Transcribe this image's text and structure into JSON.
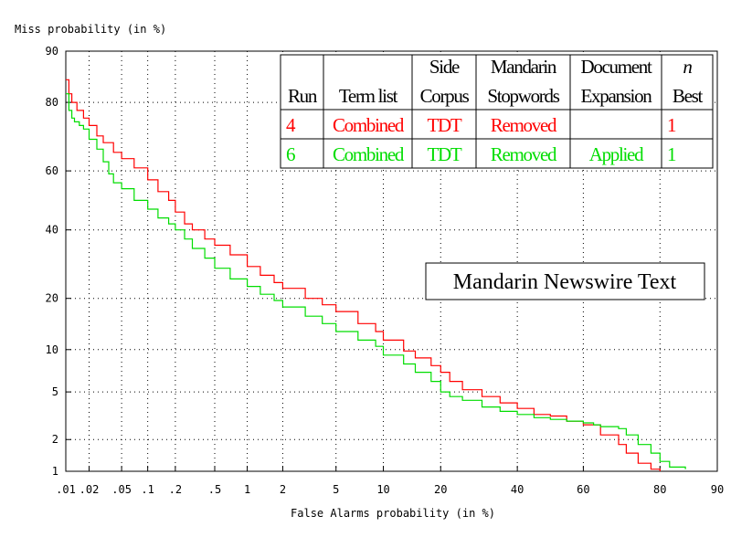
{
  "chart_data": {
    "type": "line",
    "title": "",
    "xlabel": "False Alarms probability (in %)",
    "ylabel": "Miss probability (in %)",
    "scale": "normal deviate (DET)",
    "xlim": [
      0.01,
      90
    ],
    "ylim": [
      1,
      90
    ],
    "x_ticks": [
      ".01",
      ".02",
      ".05",
      ".1",
      ".2",
      ".5",
      "1",
      "2",
      "5",
      "10",
      "20",
      "40",
      "60",
      "80",
      "90"
    ],
    "y_ticks": [
      "1",
      "2",
      "5",
      "10",
      "20",
      "40",
      "60",
      "80",
      "90"
    ],
    "grid": true,
    "series": [
      {
        "name": "Run 4",
        "color": "#ff0000",
        "x": [
          0.01,
          0.011,
          0.012,
          0.014,
          0.017,
          0.02,
          0.025,
          0.03,
          0.04,
          0.05,
          0.07,
          0.1,
          0.13,
          0.17,
          0.2,
          0.25,
          0.3,
          0.4,
          0.5,
          0.7,
          1,
          1.3,
          1.7,
          2,
          3,
          4,
          5,
          7,
          9,
          10,
          13,
          15,
          18,
          20,
          22,
          25,
          30,
          35,
          40,
          45,
          50,
          55,
          60,
          65,
          70,
          72,
          75,
          78,
          80
        ],
        "y": [
          85,
          82,
          80,
          78,
          76,
          74,
          71,
          69,
          66,
          64,
          61,
          57,
          53,
          50,
          46,
          42,
          40,
          37,
          35,
          32,
          28.5,
          26,
          24,
          22.5,
          20,
          18.5,
          17,
          14.5,
          13,
          11.5,
          9.8,
          8.8,
          7.8,
          7,
          6,
          5.2,
          4.6,
          4.1,
          3.7,
          3.3,
          3.2,
          2.9,
          2.7,
          2.2,
          1.8,
          1.5,
          1.2,
          1.05,
          1.0
        ]
      },
      {
        "name": "Run 6",
        "color": "#00dd00",
        "x": [
          0.01,
          0.011,
          0.012,
          0.013,
          0.015,
          0.017,
          0.02,
          0.025,
          0.03,
          0.035,
          0.04,
          0.05,
          0.07,
          0.1,
          0.13,
          0.17,
          0.2,
          0.25,
          0.3,
          0.4,
          0.5,
          0.7,
          1,
          1.3,
          1.7,
          2,
          3,
          4,
          5,
          7,
          9,
          10,
          13,
          15,
          18,
          20,
          22,
          25,
          30,
          35,
          40,
          45,
          50,
          55,
          60,
          63,
          65,
          70,
          72,
          75,
          78,
          80,
          82,
          85
        ],
        "y": [
          82,
          78,
          76,
          75,
          74,
          73,
          70,
          67,
          63,
          59,
          56,
          54,
          50,
          47,
          44,
          42,
          40,
          37,
          34,
          31,
          28,
          25,
          23,
          21,
          19.5,
          18,
          16,
          14.5,
          13,
          11.5,
          10.5,
          9.2,
          8,
          7,
          6,
          5,
          4.6,
          4.3,
          3.8,
          3.5,
          3.3,
          3.1,
          3.0,
          2.9,
          2.8,
          2.7,
          2.6,
          2.5,
          2.2,
          1.8,
          1.5,
          1.25,
          1.1,
          1.05
        ]
      }
    ]
  },
  "table": {
    "headers": [
      {
        "line1": "",
        "line2": "Run"
      },
      {
        "line1": "",
        "line2": "Term list"
      },
      {
        "line1": "Side",
        "line2": "Corpus"
      },
      {
        "line1": "Mandarin",
        "line2": "Stopwords"
      },
      {
        "line1": "Document",
        "line2": "Expansion"
      },
      {
        "line1": "n",
        "line2": "Best"
      }
    ],
    "rows": [
      {
        "color": "#ff0000",
        "cells": [
          "4",
          "Combined",
          "TDT",
          "Removed",
          "",
          "1"
        ]
      },
      {
        "color": "#00dd00",
        "cells": [
          "6",
          "Combined",
          "TDT",
          "Removed",
          "Applied",
          "1"
        ]
      }
    ]
  },
  "caption": "Mandarin Newswire Text"
}
